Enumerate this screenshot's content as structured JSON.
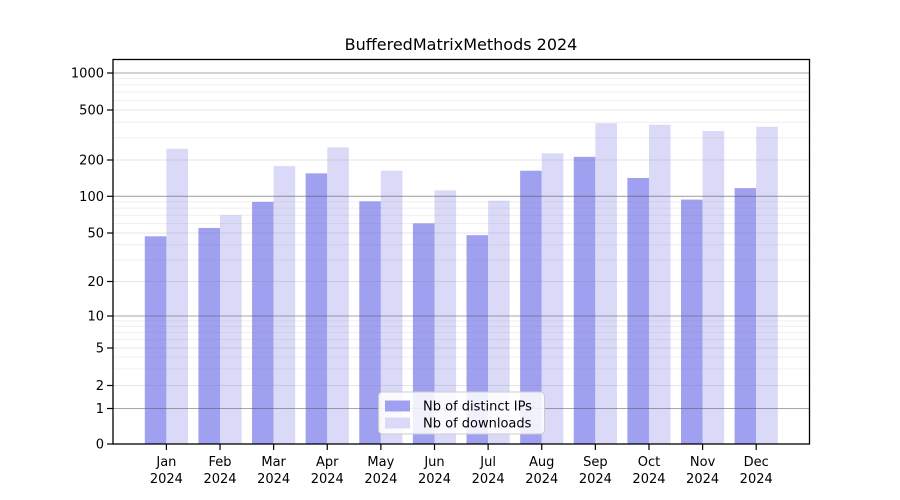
{
  "chart_data": {
    "type": "bar",
    "title": "BufferedMatrixMethods 2024",
    "categories": [
      "Jan 2024",
      "Feb 2024",
      "Mar 2024",
      "Apr 2024",
      "May 2024",
      "Jun 2024",
      "Jul 2024",
      "Aug 2024",
      "Sep 2024",
      "Oct 2024",
      "Nov 2024",
      "Dec 2024"
    ],
    "series": [
      {
        "name": "Nb of distinct IPs",
        "color": "#a0a0f0",
        "values": [
          47,
          55,
          90,
          155,
          91,
          60,
          48,
          163,
          212,
          142,
          94,
          117
        ]
      },
      {
        "name": "Nb of downloads",
        "color": "#dadaf8",
        "values": [
          246,
          70,
          178,
          252,
          163,
          112,
          92,
          226,
          392,
          382,
          340,
          368
        ]
      }
    ],
    "yticks": [
      0,
      1,
      2,
      5,
      10,
      20,
      50,
      100,
      200,
      500,
      1000
    ],
    "xlabel": "",
    "ylabel": "",
    "yscale": "pseudo-log",
    "ylim": [
      0,
      1000
    ],
    "grid": true,
    "legend_position": "lower center"
  }
}
